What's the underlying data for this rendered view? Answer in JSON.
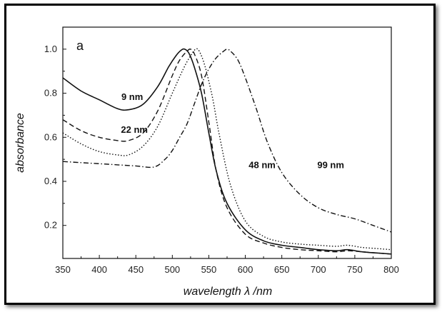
{
  "chart_data": {
    "type": "line",
    "panel_label": "a",
    "xlabel": "wavelength λ /nm",
    "ylabel": "absorbance",
    "xlim": [
      350,
      800
    ],
    "ylim": [
      0.05,
      1.1
    ],
    "xticks": [
      350,
      400,
      450,
      500,
      550,
      600,
      650,
      700,
      750,
      800
    ],
    "yticks": [
      0.2,
      0.4,
      0.6,
      0.8,
      1.0
    ],
    "ytick_labels": [
      "0.2",
      "0.4",
      "0.6",
      "0.8",
      "1.0"
    ],
    "grid": false,
    "series": [
      {
        "name": "9 nm",
        "style": "solid",
        "x": [
          350,
          375,
          400,
          425,
          440,
          460,
          480,
          495,
          505,
          512,
          517,
          523,
          530,
          540,
          550,
          560,
          575,
          600,
          625,
          650,
          675,
          700,
          725,
          740,
          760,
          780,
          800
        ],
        "y": [
          0.87,
          0.81,
          0.77,
          0.73,
          0.725,
          0.75,
          0.83,
          0.92,
          0.97,
          0.995,
          1.0,
          0.98,
          0.92,
          0.8,
          0.62,
          0.45,
          0.3,
          0.18,
          0.13,
          0.11,
          0.1,
          0.09,
          0.085,
          0.09,
          0.08,
          0.075,
          0.07
        ]
      },
      {
        "name": "22 nm",
        "style": "dashed",
        "x": [
          350,
          375,
          400,
          425,
          440,
          460,
          480,
          500,
          510,
          520,
          525,
          530,
          540,
          550,
          560,
          575,
          600,
          625,
          650,
          675,
          700,
          725,
          740,
          760,
          780,
          800
        ],
        "y": [
          0.68,
          0.63,
          0.6,
          0.585,
          0.585,
          0.62,
          0.72,
          0.88,
          0.95,
          0.99,
          1.0,
          0.98,
          0.88,
          0.67,
          0.45,
          0.28,
          0.16,
          0.12,
          0.1,
          0.09,
          0.085,
          0.08,
          0.085,
          0.08,
          0.075,
          0.07
        ]
      },
      {
        "name": "48 nm",
        "style": "dotted",
        "x": [
          350,
          375,
          400,
          425,
          440,
          460,
          480,
          500,
          515,
          525,
          532,
          537,
          545,
          555,
          565,
          580,
          600,
          625,
          650,
          675,
          700,
          725,
          740,
          760,
          780,
          800
        ],
        "y": [
          0.62,
          0.57,
          0.535,
          0.52,
          0.52,
          0.56,
          0.65,
          0.8,
          0.91,
          0.97,
          1.0,
          0.99,
          0.92,
          0.78,
          0.6,
          0.38,
          0.22,
          0.15,
          0.125,
          0.115,
          0.11,
          0.105,
          0.11,
          0.1,
          0.095,
          0.09
        ]
      },
      {
        "name": "99 nm",
        "style": "dashdot",
        "x": [
          350,
          375,
          400,
          425,
          450,
          475,
          490,
          500,
          510,
          520,
          530,
          540,
          550,
          560,
          570,
          575,
          580,
          590,
          600,
          615,
          630,
          650,
          675,
          700,
          725,
          750,
          775,
          800
        ],
        "y": [
          0.49,
          0.485,
          0.48,
          0.475,
          0.47,
          0.465,
          0.5,
          0.54,
          0.6,
          0.66,
          0.75,
          0.84,
          0.91,
          0.96,
          0.99,
          1.0,
          0.99,
          0.95,
          0.87,
          0.73,
          0.58,
          0.44,
          0.34,
          0.28,
          0.25,
          0.23,
          0.2,
          0.17
        ]
      }
    ],
    "annotations": [
      {
        "text": "9 nm",
        "x": 445,
        "y": 0.77
      },
      {
        "text": "22 nm",
        "x": 448,
        "y": 0.62
      },
      {
        "text": "48 nm",
        "x": 623,
        "y": 0.46
      },
      {
        "text": "99 nm",
        "x": 717,
        "y": 0.46
      }
    ]
  }
}
